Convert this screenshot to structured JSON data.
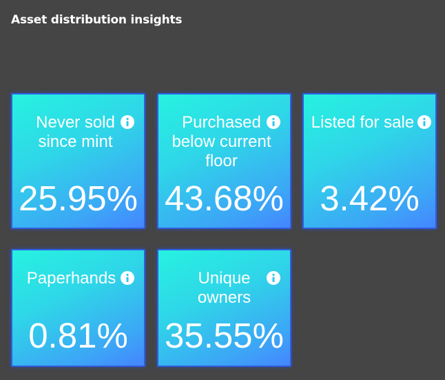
{
  "header": {
    "title": "Asset distribution insights"
  },
  "cards": [
    {
      "label": "Never sold since mint",
      "value": "25.95%",
      "icon": "info-icon"
    },
    {
      "label": "Purchased below current floor",
      "value": "43.68%",
      "icon": "info-icon"
    },
    {
      "label": "Listed for sale",
      "value": "3.42%",
      "icon": "info-icon"
    },
    {
      "label": "Paperhands",
      "value": "0.81%",
      "icon": "info-icon"
    },
    {
      "label": "Unique owners",
      "value": "35.55%",
      "icon": "info-icon"
    }
  ],
  "colors": {
    "background": "#454545",
    "card_gradient_start": "#26f2e0",
    "card_gradient_end": "#4585ff",
    "card_border": "#2f5fe0",
    "text": "#ffffff"
  }
}
